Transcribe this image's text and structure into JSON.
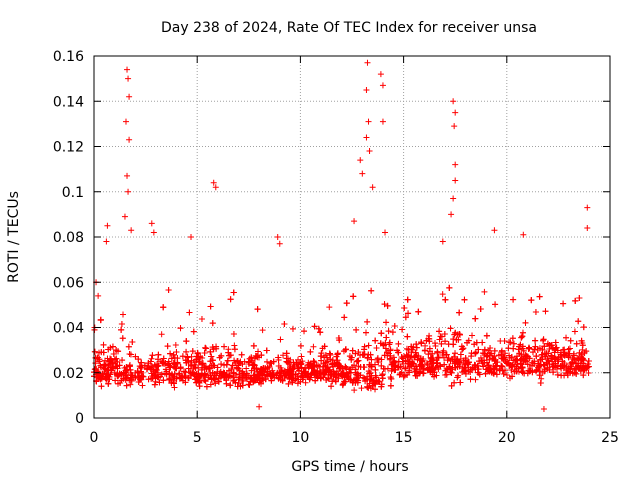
{
  "chart_data": {
    "type": "scatter",
    "title": "Day 238 of 2024, Rate Of TEC Index for receiver unsa",
    "xlabel": "GPS time / hours",
    "ylabel": "ROTI / TECUs",
    "xlim": [
      0,
      25
    ],
    "ylim": [
      0,
      0.16
    ],
    "xticks": [
      0,
      5,
      10,
      15,
      20,
      25
    ],
    "xtick_labels": [
      "0",
      "5",
      "10",
      "15",
      "20",
      "25"
    ],
    "yticks": [
      0,
      0.02,
      0.04,
      0.06,
      0.08,
      0.1,
      0.12,
      0.14,
      0.16
    ],
    "ytick_labels": [
      "0",
      "0.02",
      "0.04",
      "0.06",
      "0.08",
      "0.1",
      "0.12",
      "0.14",
      "0.16"
    ],
    "grid": true,
    "marker": "+",
    "color": "#ff0000",
    "series": [
      {
        "name": "ROTI",
        "notable_points": [
          {
            "x": 1.6,
            "y": 0.154
          },
          {
            "x": 1.65,
            "y": 0.15
          },
          {
            "x": 1.7,
            "y": 0.142
          },
          {
            "x": 1.55,
            "y": 0.131
          },
          {
            "x": 1.7,
            "y": 0.123
          },
          {
            "x": 1.6,
            "y": 0.107
          },
          {
            "x": 1.65,
            "y": 0.1
          },
          {
            "x": 1.5,
            "y": 0.089
          },
          {
            "x": 1.8,
            "y": 0.083
          },
          {
            "x": 2.8,
            "y": 0.086
          },
          {
            "x": 2.9,
            "y": 0.082
          },
          {
            "x": 0.65,
            "y": 0.085
          },
          {
            "x": 0.6,
            "y": 0.078
          },
          {
            "x": 4.7,
            "y": 0.08
          },
          {
            "x": 5.8,
            "y": 0.104
          },
          {
            "x": 5.9,
            "y": 0.102
          },
          {
            "x": 8.9,
            "y": 0.08
          },
          {
            "x": 9.0,
            "y": 0.077
          },
          {
            "x": 12.6,
            "y": 0.087
          },
          {
            "x": 12.9,
            "y": 0.114
          },
          {
            "x": 13.0,
            "y": 0.108
          },
          {
            "x": 13.2,
            "y": 0.145
          },
          {
            "x": 13.25,
            "y": 0.157
          },
          {
            "x": 13.3,
            "y": 0.131
          },
          {
            "x": 13.2,
            "y": 0.124
          },
          {
            "x": 13.35,
            "y": 0.118
          },
          {
            "x": 13.9,
            "y": 0.152
          },
          {
            "x": 14.0,
            "y": 0.147
          },
          {
            "x": 14.0,
            "y": 0.131
          },
          {
            "x": 13.5,
            "y": 0.102
          },
          {
            "x": 14.1,
            "y": 0.082
          },
          {
            "x": 17.4,
            "y": 0.14
          },
          {
            "x": 17.5,
            "y": 0.135
          },
          {
            "x": 17.45,
            "y": 0.129
          },
          {
            "x": 17.5,
            "y": 0.112
          },
          {
            "x": 17.5,
            "y": 0.105
          },
          {
            "x": 17.4,
            "y": 0.097
          },
          {
            "x": 17.3,
            "y": 0.09
          },
          {
            "x": 16.9,
            "y": 0.078
          },
          {
            "x": 23.9,
            "y": 0.093
          },
          {
            "x": 23.9,
            "y": 0.084
          },
          {
            "x": 20.8,
            "y": 0.081
          },
          {
            "x": 19.4,
            "y": 0.083
          },
          {
            "x": 0.1,
            "y": 0.06
          },
          {
            "x": 0.2,
            "y": 0.054
          },
          {
            "x": 11.4,
            "y": 0.049
          },
          {
            "x": 8.0,
            "y": 0.005
          },
          {
            "x": 21.8,
            "y": 0.004
          }
        ],
        "baseline_note": "Dense cloud of samples mostly between 0.005 and 0.05 TECU across 0-24 h"
      }
    ]
  }
}
